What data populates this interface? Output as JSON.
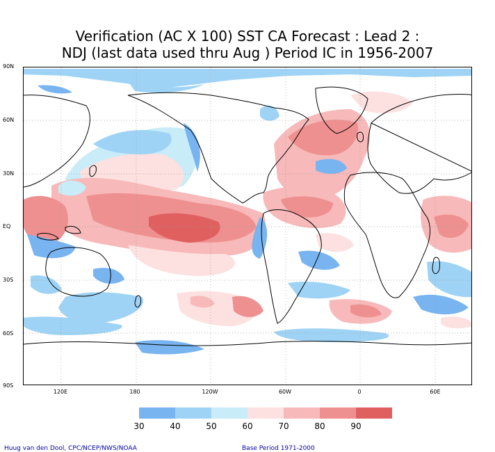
{
  "title": {
    "line1": "Verification (AC X 100) SST CA Forecast : Lead 2 :",
    "line2": "NDJ (last data used thru Aug ) Period IC in 1956-2007"
  },
  "axes": {
    "lat_labels": [
      "90N",
      "60N",
      "30N",
      "EQ",
      "30S",
      "60S",
      "90S"
    ],
    "lon_labels": [
      "120E",
      "180",
      "120W",
      "60W",
      "0",
      "60E"
    ]
  },
  "legend": {
    "levels": [
      "30",
      "40",
      "50",
      "60",
      "70",
      "80",
      "90"
    ],
    "colors": [
      "#78b4f0",
      "#9fd3f5",
      "#c8ecf8",
      "#fde0e0",
      "#f7b9b9",
      "#ef9090",
      "#e06060"
    ]
  },
  "footer": {
    "credit": "Huug van den Dool, CPC/NCEP/NWS/NOAA",
    "base_period": "Base Period 1971-2000"
  }
}
